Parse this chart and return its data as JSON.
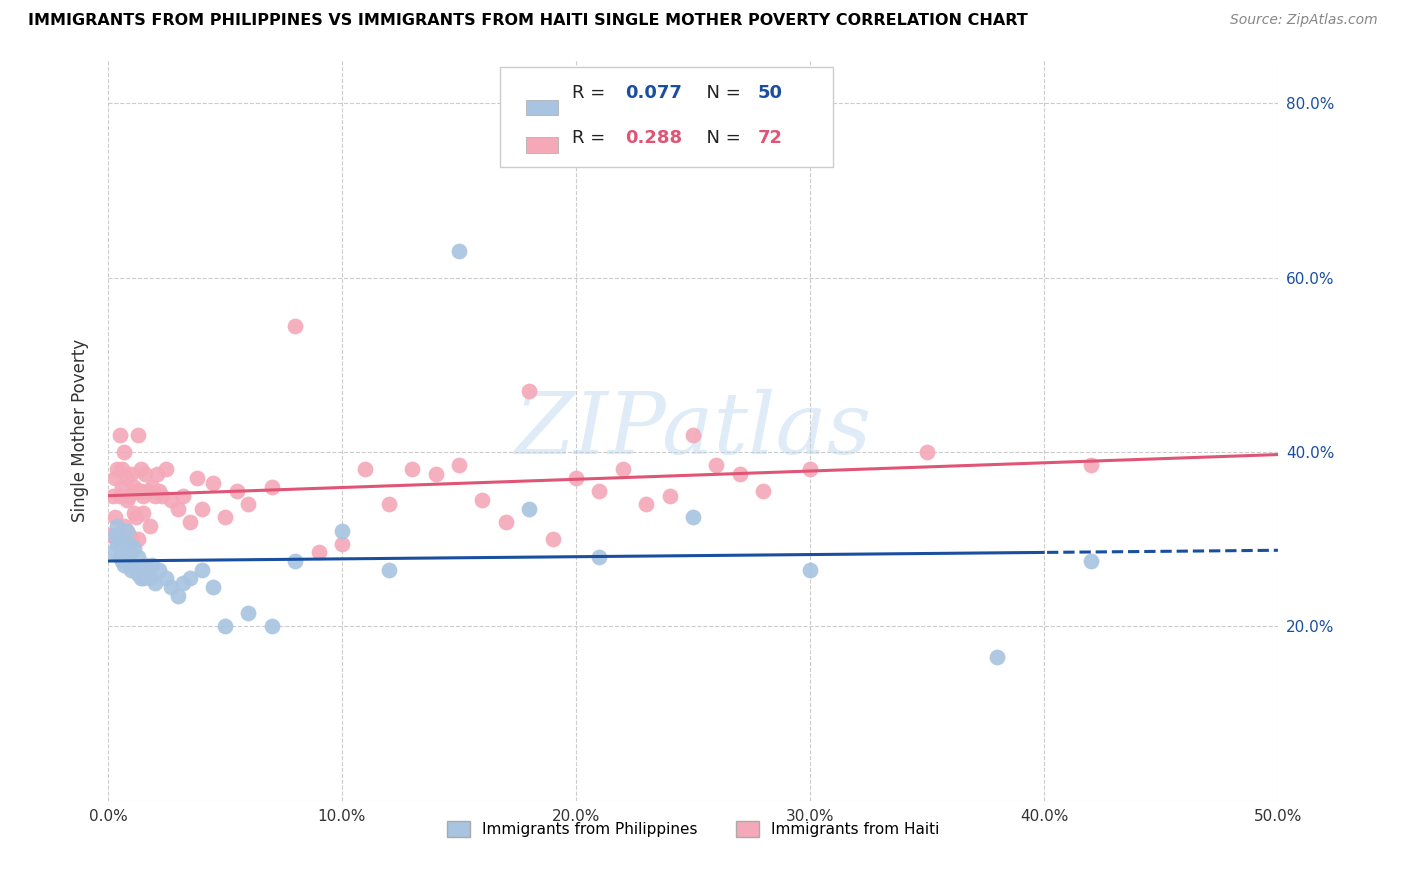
{
  "title": "IMMIGRANTS FROM PHILIPPINES VS IMMIGRANTS FROM HAITI SINGLE MOTHER POVERTY CORRELATION CHART",
  "source": "Source: ZipAtlas.com",
  "ylabel": "Single Mother Poverty",
  "xlim": [
    0.0,
    0.5
  ],
  "ylim": [
    0.0,
    0.85
  ],
  "xtick_labels": [
    "0.0%",
    "10.0%",
    "20.0%",
    "30.0%",
    "40.0%",
    "50.0%"
  ],
  "ytick_labels_right": [
    "",
    "20.0%",
    "40.0%",
    "60.0%",
    "80.0%"
  ],
  "philippines_color": "#a8c4e0",
  "haiti_color": "#f4a8b8",
  "philippines_line_color": "#1a4fa0",
  "haiti_line_color": "#e05575",
  "philippines_R": 0.077,
  "philippines_N": 50,
  "haiti_R": 0.288,
  "haiti_N": 72,
  "legend_label_philippines": "Immigrants from Philippines",
  "legend_label_haiti": "Immigrants from Haiti",
  "watermark": "ZIPatlas",
  "philippines_x": [
    0.002,
    0.003,
    0.004,
    0.004,
    0.005,
    0.005,
    0.006,
    0.006,
    0.007,
    0.007,
    0.008,
    0.008,
    0.009,
    0.009,
    0.01,
    0.01,
    0.011,
    0.011,
    0.012,
    0.013,
    0.013,
    0.014,
    0.015,
    0.015,
    0.016,
    0.017,
    0.018,
    0.019,
    0.02,
    0.022,
    0.025,
    0.027,
    0.03,
    0.032,
    0.035,
    0.04,
    0.045,
    0.05,
    0.06,
    0.07,
    0.08,
    0.1,
    0.12,
    0.15,
    0.18,
    0.21,
    0.25,
    0.3,
    0.38,
    0.42
  ],
  "philippines_y": [
    0.285,
    0.305,
    0.295,
    0.315,
    0.28,
    0.3,
    0.275,
    0.295,
    0.285,
    0.27,
    0.29,
    0.31,
    0.275,
    0.295,
    0.265,
    0.285,
    0.27,
    0.29,
    0.265,
    0.28,
    0.26,
    0.255,
    0.265,
    0.255,
    0.27,
    0.26,
    0.255,
    0.27,
    0.25,
    0.265,
    0.255,
    0.245,
    0.235,
    0.25,
    0.255,
    0.265,
    0.245,
    0.2,
    0.215,
    0.2,
    0.275,
    0.31,
    0.265,
    0.63,
    0.335,
    0.28,
    0.325,
    0.265,
    0.165,
    0.275
  ],
  "haiti_x": [
    0.001,
    0.002,
    0.003,
    0.003,
    0.004,
    0.004,
    0.005,
    0.005,
    0.006,
    0.006,
    0.007,
    0.007,
    0.008,
    0.008,
    0.009,
    0.009,
    0.01,
    0.01,
    0.011,
    0.011,
    0.012,
    0.012,
    0.013,
    0.013,
    0.014,
    0.014,
    0.015,
    0.015,
    0.016,
    0.017,
    0.018,
    0.019,
    0.02,
    0.021,
    0.022,
    0.023,
    0.025,
    0.027,
    0.03,
    0.032,
    0.035,
    0.038,
    0.04,
    0.045,
    0.05,
    0.055,
    0.06,
    0.07,
    0.08,
    0.09,
    0.1,
    0.11,
    0.12,
    0.13,
    0.14,
    0.15,
    0.16,
    0.17,
    0.18,
    0.19,
    0.2,
    0.21,
    0.22,
    0.23,
    0.24,
    0.25,
    0.26,
    0.27,
    0.28,
    0.3,
    0.35,
    0.42
  ],
  "haiti_y": [
    0.305,
    0.35,
    0.325,
    0.37,
    0.3,
    0.38,
    0.35,
    0.42,
    0.36,
    0.38,
    0.315,
    0.4,
    0.345,
    0.37,
    0.305,
    0.35,
    0.3,
    0.375,
    0.33,
    0.36,
    0.325,
    0.355,
    0.3,
    0.42,
    0.355,
    0.38,
    0.33,
    0.35,
    0.375,
    0.355,
    0.315,
    0.36,
    0.35,
    0.375,
    0.355,
    0.35,
    0.38,
    0.345,
    0.335,
    0.35,
    0.32,
    0.37,
    0.335,
    0.365,
    0.325,
    0.355,
    0.34,
    0.36,
    0.545,
    0.285,
    0.295,
    0.38,
    0.34,
    0.38,
    0.375,
    0.385,
    0.345,
    0.32,
    0.47,
    0.3,
    0.37,
    0.355,
    0.38,
    0.34,
    0.35,
    0.42,
    0.385,
    0.375,
    0.355,
    0.38,
    0.4,
    0.385
  ]
}
